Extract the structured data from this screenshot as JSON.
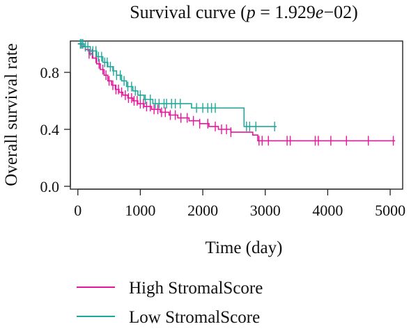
{
  "chart_data": {
    "type": "line",
    "title": "Survival curve (p = 1.929e−02)",
    "title_parts": {
      "prefix": "Survival curve (",
      "p_symbol": "p",
      "equals_prefix": " = 1.929",
      "e_symbol": "e",
      "suffix": "−02)"
    },
    "xlabel": "Time (day)",
    "ylabel": "Overall survival rate",
    "xlim": [
      -120,
      5200
    ],
    "ylim": [
      -0.02,
      1.02
    ],
    "x_ticks": [
      0,
      1000,
      2000,
      3000,
      4000,
      5000
    ],
    "x_tick_labels": [
      "0",
      "1000",
      "2000",
      "3000",
      "4000",
      "5000"
    ],
    "y_ticks": [
      0.0,
      0.4,
      0.8
    ],
    "y_tick_labels": [
      "0.0",
      "0.4",
      "0.8"
    ],
    "grid": false,
    "legend_position": "bottom-left",
    "series": [
      {
        "name": "High StromalScore",
        "color": "#e8169a",
        "steps": [
          [
            0,
            1.0
          ],
          [
            60,
            0.98
          ],
          [
            120,
            0.96
          ],
          [
            180,
            0.93
          ],
          [
            240,
            0.9
          ],
          [
            300,
            0.86
          ],
          [
            360,
            0.82
          ],
          [
            420,
            0.78
          ],
          [
            480,
            0.74
          ],
          [
            540,
            0.71
          ],
          [
            600,
            0.68
          ],
          [
            660,
            0.66
          ],
          [
            720,
            0.64
          ],
          [
            800,
            0.62
          ],
          [
            880,
            0.6
          ],
          [
            960,
            0.58
          ],
          [
            1060,
            0.56
          ],
          [
            1180,
            0.54
          ],
          [
            1320,
            0.52
          ],
          [
            1460,
            0.5
          ],
          [
            1600,
            0.48
          ],
          [
            1780,
            0.46
          ],
          [
            1950,
            0.44
          ],
          [
            2100,
            0.42
          ],
          [
            2250,
            0.4
          ],
          [
            2450,
            0.38
          ],
          [
            2800,
            0.36
          ],
          [
            2880,
            0.32
          ],
          [
            5080,
            0.32
          ]
        ],
        "censor_times": [
          180,
          230,
          290,
          340,
          400,
          450,
          500,
          560,
          610,
          650,
          700,
          760,
          810,
          860,
          900,
          950,
          1000,
          1050,
          1100,
          1160,
          1220,
          1280,
          1340,
          1400,
          1480,
          1560,
          1650,
          1750,
          1850,
          1950,
          2080,
          2200,
          2300,
          2380,
          2450,
          2900,
          2950,
          3050,
          3350,
          3400,
          3800,
          3850,
          4050,
          4300,
          4650,
          5050
        ]
      },
      {
        "name": "Low StromalScore",
        "color": "#1fa89a",
        "steps": [
          [
            0,
            1.0
          ],
          [
            100,
            0.98
          ],
          [
            200,
            0.95
          ],
          [
            300,
            0.91
          ],
          [
            400,
            0.87
          ],
          [
            480,
            0.84
          ],
          [
            560,
            0.81
          ],
          [
            620,
            0.78
          ],
          [
            700,
            0.74
          ],
          [
            780,
            0.7
          ],
          [
            880,
            0.67
          ],
          [
            960,
            0.64
          ],
          [
            1060,
            0.61
          ],
          [
            1200,
            0.58
          ],
          [
            1800,
            0.58
          ],
          [
            1820,
            0.55
          ],
          [
            2650,
            0.55
          ],
          [
            2660,
            0.42
          ],
          [
            3180,
            0.42
          ]
        ],
        "censor_times": [
          40,
          60,
          80,
          120,
          160,
          200,
          240,
          290,
          330,
          380,
          430,
          470,
          520,
          570,
          620,
          680,
          740,
          800,
          860,
          920,
          1000,
          1080,
          1160,
          1240,
          1300,
          1380,
          1420,
          1500,
          1560,
          1640,
          1900,
          2000,
          2080,
          2140,
          2200,
          2700,
          2750,
          2850,
          3150
        ]
      }
    ]
  }
}
